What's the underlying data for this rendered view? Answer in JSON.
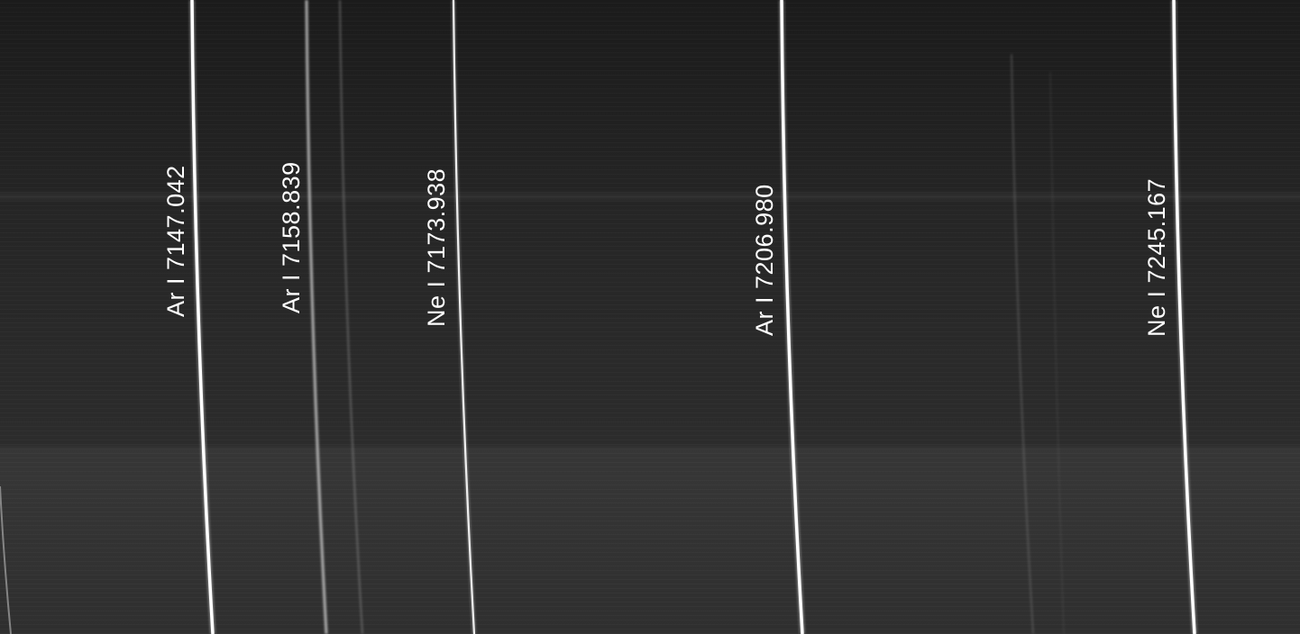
{
  "spectral_lines": [
    {
      "element": "Ar I",
      "wavelength": "7147.042",
      "label": "Ar I 7147.042"
    },
    {
      "element": "Ar I",
      "wavelength": "7158.839",
      "label": "Ar I 7158.839"
    },
    {
      "element": "Ne I",
      "wavelength": "7173.938",
      "label": "Ne I 7173.938"
    },
    {
      "element": "Ar I",
      "wavelength": "7206.980",
      "label": "Ar I 7206.980"
    },
    {
      "element": "Ne I",
      "wavelength": "7245.167",
      "label": "Ne I 7245.167"
    }
  ],
  "colors": {
    "background": "#262626",
    "emission_line": "#ffffff",
    "label_text": "#ffffff"
  }
}
